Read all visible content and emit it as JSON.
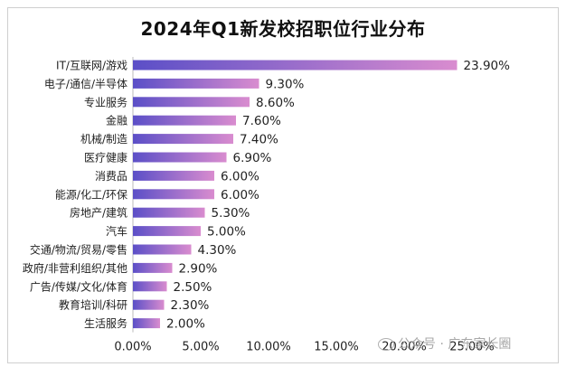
{
  "chart_data": {
    "type": "bar",
    "orientation": "horizontal",
    "title": "2024年Q1新发校招职位行业分布",
    "categories": [
      "IT/互联网/游戏",
      "电子/通信/半导体",
      "专业服务",
      "金融",
      "机械/制造",
      "医疗健康",
      "消费品",
      "能源/化工/环保",
      "房地产/建筑",
      "汽车",
      "交通/物流/贸易/零售",
      "政府/非营利组织/其他",
      "广告/传媒/文化/体育",
      "教育培训/科研",
      "生活服务"
    ],
    "values": [
      23.9,
      9.3,
      8.6,
      7.6,
      7.4,
      6.9,
      6.0,
      6.0,
      5.3,
      5.0,
      4.3,
      2.9,
      2.5,
      2.3,
      2.0
    ],
    "value_labels": [
      "23.90%",
      "9.30%",
      "8.60%",
      "7.60%",
      "7.40%",
      "6.90%",
      "6.00%",
      "6.00%",
      "5.30%",
      "5.00%",
      "4.30%",
      "2.90%",
      "2.50%",
      "2.30%",
      "2.00%"
    ],
    "xlim": [
      0,
      25
    ],
    "xticks": [
      0,
      5,
      10,
      15,
      20,
      25
    ],
    "xtick_labels": [
      "0.00%",
      "5.00%",
      "10.00%",
      "15.00%",
      "20.00%",
      "25.00%"
    ],
    "xlabel": "",
    "ylabel": "",
    "grid": false,
    "bar_color_start": "#5b4fc7",
    "bar_color_end": "#d98ccf"
  },
  "watermark": {
    "text": "公众号 · 广东家长圈",
    "icon": "wechat-icon"
  }
}
